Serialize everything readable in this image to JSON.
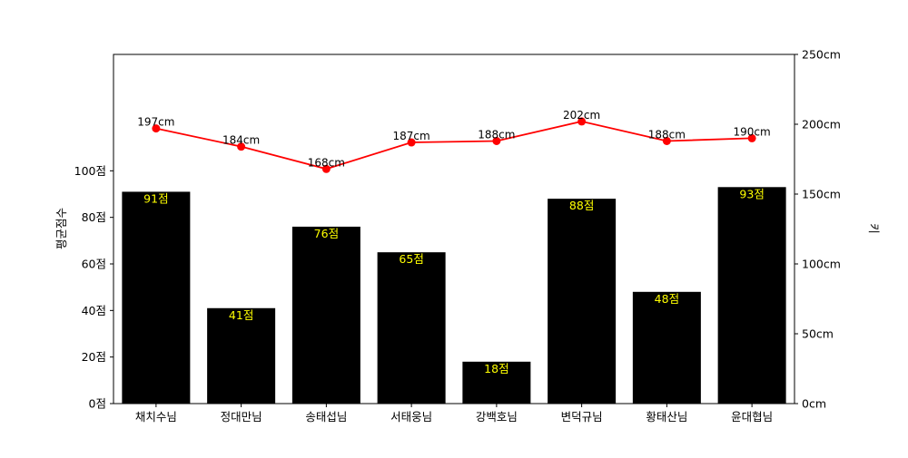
{
  "chart_data": {
    "type": "bar+line",
    "title": "",
    "categories": [
      "채치수님",
      "정대만님",
      "송태섭님",
      "서태웅님",
      "강백호님",
      "변덕규님",
      "황태산님",
      "윤대협님"
    ],
    "bar_series": {
      "axis": "left",
      "color": "#000000",
      "label_color": "#ffff00",
      "values": [
        91,
        41,
        76,
        65,
        18,
        88,
        48,
        93
      ],
      "labels": [
        "91점",
        "41점",
        "76점",
        "65점",
        "18점",
        "88점",
        "48점",
        "93점"
      ]
    },
    "line_series": {
      "axis": "right",
      "color": "#ff0000",
      "marker": "circle",
      "values": [
        197,
        184,
        168,
        187,
        188,
        202,
        188,
        190
      ],
      "labels": [
        "197cm",
        "184cm",
        "168cm",
        "187cm",
        "188cm",
        "202cm",
        "188cm",
        "190cm"
      ]
    },
    "left_axis": {
      "label": "평균점수",
      "ylim": [
        0,
        150
      ],
      "ticks": [
        0,
        20,
        40,
        60,
        80,
        100
      ],
      "tick_labels": [
        "0점",
        "20점",
        "40점",
        "60점",
        "80점",
        "100점"
      ]
    },
    "right_axis": {
      "label": "키",
      "ylim": [
        0,
        250
      ],
      "ticks": [
        0,
        50,
        100,
        150,
        200,
        250
      ],
      "tick_labels": [
        "0cm",
        "50cm",
        "100cm",
        "150cm",
        "200cm",
        "250cm"
      ]
    },
    "grid": false,
    "legend": "none"
  }
}
